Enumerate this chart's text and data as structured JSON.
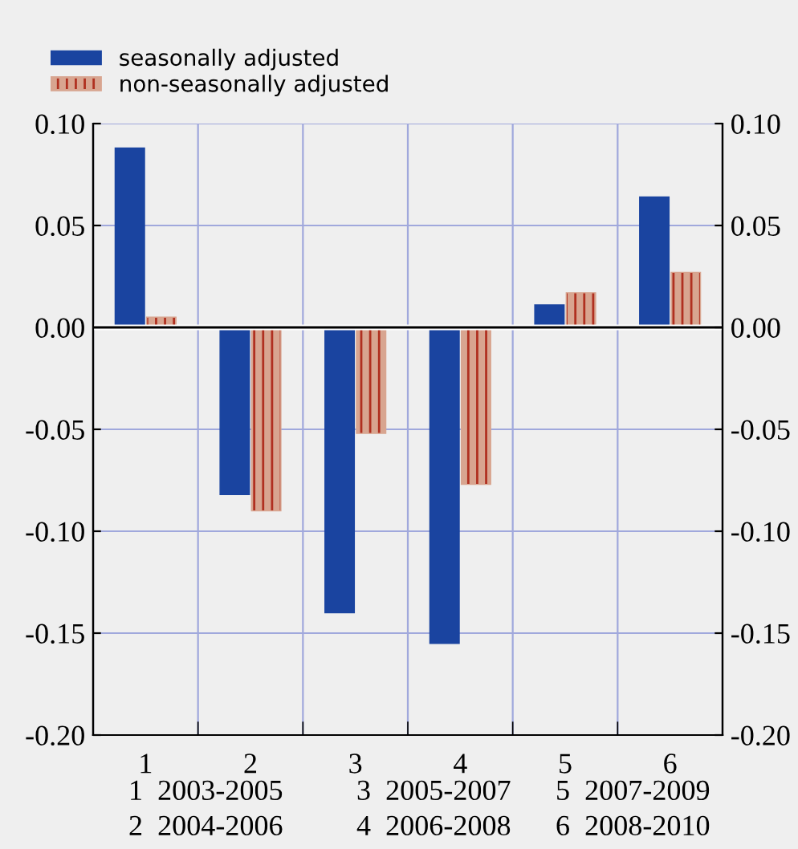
{
  "chart_data": {
    "type": "bar",
    "categories": [
      "1",
      "2",
      "3",
      "4",
      "5",
      "6"
    ],
    "series": [
      {
        "name": "seasonally adjusted",
        "color": "#1a44a0",
        "values": [
          0.088,
          -0.082,
          -0.14,
          -0.155,
          0.011,
          0.064
        ]
      },
      {
        "name": "non-seasonally adjusted",
        "color": "#d8a590",
        "values": [
          0.005,
          -0.09,
          -0.052,
          -0.077,
          0.017,
          0.027
        ]
      }
    ],
    "ylim": [
      -0.2,
      0.1
    ],
    "yticks": [
      {
        "value": -0.2,
        "label": "-0.20"
      },
      {
        "value": -0.15,
        "label": "-0.15"
      },
      {
        "value": -0.1,
        "label": "-0.10"
      },
      {
        "value": -0.05,
        "label": "-0.05"
      },
      {
        "value": 0,
        "label": "0.00"
      },
      {
        "value": 0.05,
        "label": "0.05"
      },
      {
        "value": 0.1,
        "label": "0.10"
      }
    ],
    "y2lim": [
      -0.2,
      0.1
    ],
    "y2ticks": [
      {
        "value": -0.2,
        "label": "-0.20"
      },
      {
        "value": -0.15,
        "label": "-0.15"
      },
      {
        "value": -0.1,
        "label": "-0.10"
      },
      {
        "value": -0.05,
        "label": "-0.05"
      },
      {
        "value": 0,
        "label": "0.00"
      },
      {
        "value": 0.05,
        "label": "0.05"
      },
      {
        "value": 0.1,
        "label": "0.10"
      }
    ],
    "grid": true,
    "legend": "top left",
    "annotations": [
      "1  2003-2005",
      "2  2004-2006",
      "3  2005-2007",
      "4  2006-2008",
      "5  2007-2009",
      "6  2008-2010"
    ]
  }
}
